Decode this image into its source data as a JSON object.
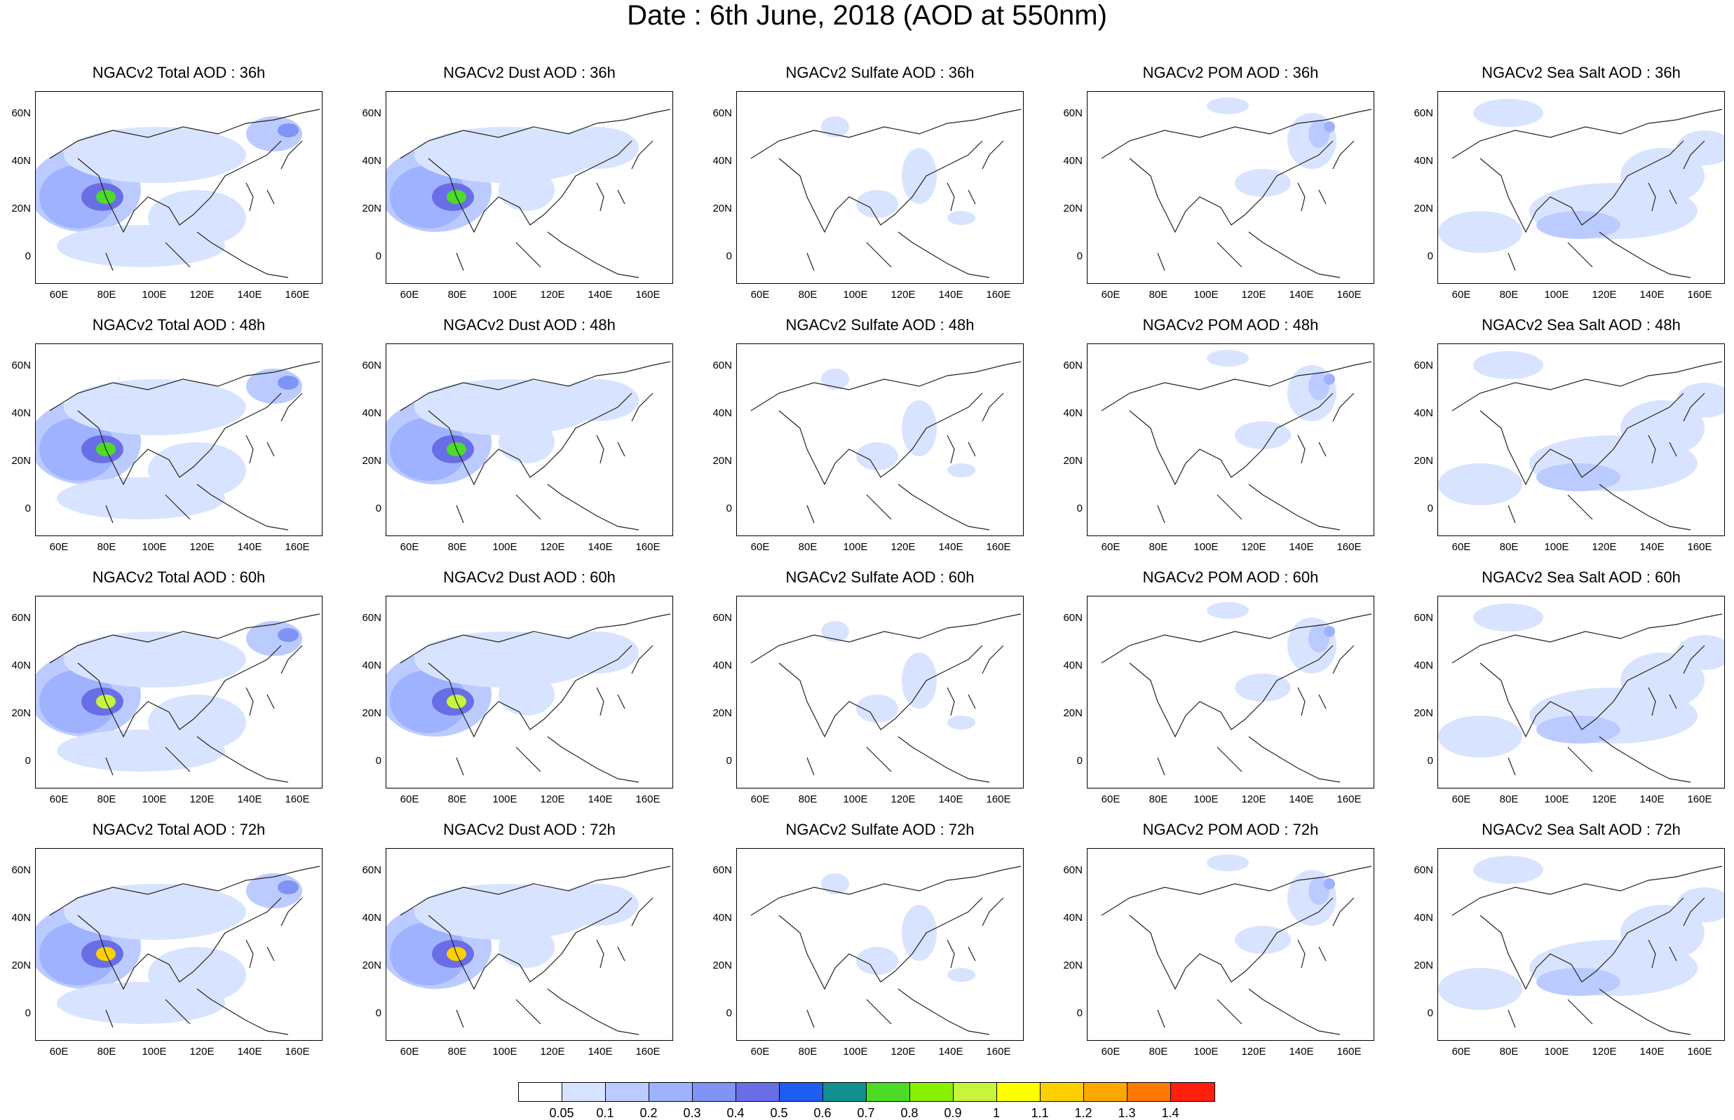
{
  "title": "Date : 6th June, 2018 (AOD at 550nm)",
  "rows": [
    {
      "panels": [
        "NGACv2 Total AOD : 36h",
        "NGACv2 Dust AOD : 36h",
        "NGACv2 Sulfate AOD : 36h",
        "NGACv2 POM AOD : 36h",
        "NGACv2 Sea Salt AOD : 36h"
      ]
    },
    {
      "panels": [
        "NGACv2 Total AOD : 48h",
        "NGACv2 Dust AOD : 48h",
        "NGACv2 Sulfate AOD : 48h",
        "NGACv2 POM AOD : 48h",
        "NGACv2 Sea Salt AOD : 48h"
      ]
    },
    {
      "panels": [
        "NGACv2 Total AOD : 60h",
        "NGACv2 Dust AOD : 60h",
        "NGACv2 Sulfate AOD : 60h",
        "NGACv2 POM AOD : 60h",
        "NGACv2 Sea Salt AOD : 60h"
      ]
    },
    {
      "panels": [
        "NGACv2 Total AOD : 72h",
        "NGACv2 Dust AOD : 72h",
        "NGACv2 Sulfate AOD : 72h",
        "NGACv2 POM AOD : 72h",
        "NGACv2 Sea Salt  AOD : 72h"
      ]
    }
  ],
  "latitude_labels": [
    "60N",
    "40N",
    "20N",
    "0"
  ],
  "longitude_labels": [
    "60E",
    "80E",
    "100E",
    "120E",
    "140E",
    "160E"
  ],
  "colorbar": {
    "labels": [
      "0.05",
      "0.1",
      "0.2",
      "0.3",
      "0.4",
      "0.5",
      "0.6",
      "0.7",
      "0.8",
      "0.9",
      "1",
      "1.1",
      "1.2",
      "1.3",
      "1.4"
    ],
    "colors": [
      "#ffffff",
      "#d8e4ff",
      "#bccbff",
      "#9fb2ff",
      "#8094f5",
      "#6a6ee6",
      "#1f5cf0",
      "#129090",
      "#4cdc28",
      "#88f000",
      "#c8f53c",
      "#ffff00",
      "#ffd000",
      "#ffa800",
      "#ff7800",
      "#ff2010"
    ]
  }
}
